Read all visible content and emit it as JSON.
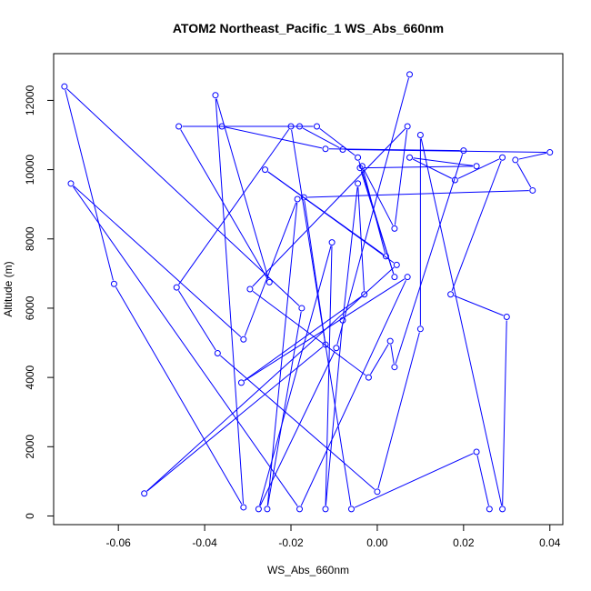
{
  "chart_data": {
    "type": "line",
    "title": "ATOM2 Northeast_Pacific_1 WS_Abs_660nm",
    "xlabel": "WS_Abs_660nm",
    "ylabel": "Altitude (m)",
    "xlim": [
      -0.075,
      0.043
    ],
    "ylim": [
      -250,
      13350
    ],
    "xticks": [
      -0.06,
      -0.04,
      -0.02,
      0.0,
      0.02,
      0.04
    ],
    "xtick_labels": [
      "-0.06",
      "-0.04",
      "-0.02",
      "0.00",
      "0.02",
      "0.04"
    ],
    "yticks": [
      0,
      2000,
      4000,
      6000,
      8000,
      10000,
      12000
    ],
    "ytick_labels": [
      "0",
      "2000",
      "4000",
      "6000",
      "8000",
      "10000",
      "12000"
    ],
    "series": [
      {
        "color": "#0000ff",
        "marker": "open-circle",
        "points": [
          {
            "x": 0.0075,
            "y": 12750
          },
          {
            "x": -0.0095,
            "y": 4850
          },
          {
            "x": -0.0275,
            "y": 200
          },
          {
            "x": -0.0105,
            "y": 7900
          },
          {
            "x": -0.012,
            "y": 200
          },
          {
            "x": -0.008,
            "y": 5650
          },
          {
            "x": -0.0045,
            "y": 9600
          },
          {
            "x": -0.003,
            "y": 6400
          },
          {
            "x": -0.0315,
            "y": 3850
          },
          {
            "x": 0.007,
            "y": 6900
          },
          {
            "x": -0.018,
            "y": 200
          },
          {
            "x": -0.071,
            "y": 9600
          },
          {
            "x": -0.031,
            "y": 5100
          },
          {
            "x": -0.0185,
            "y": 9150
          },
          {
            "x": -0.0255,
            "y": 200
          },
          {
            "x": -0.0175,
            "y": 6000
          },
          {
            "x": -0.0725,
            "y": 12400
          },
          {
            "x": -0.061,
            "y": 6700
          },
          {
            "x": -0.031,
            "y": 250
          },
          {
            "x": -0.0375,
            "y": 12150
          },
          {
            "x": -0.025,
            "y": 6750
          },
          {
            "x": -0.046,
            "y": 11250
          },
          {
            "x": -0.018,
            "y": 11250
          },
          {
            "x": -0.008,
            "y": 10580
          },
          {
            "x": 0.04,
            "y": 10500
          },
          {
            "x": 0.032,
            "y": 10280
          },
          {
            "x": 0.036,
            "y": 9400
          },
          {
            "x": -0.017,
            "y": 9200
          },
          {
            "x": -0.012,
            "y": 4950
          },
          {
            "x": -0.054,
            "y": 650
          },
          {
            "x": 0.0045,
            "y": 7250
          },
          {
            "x": -0.026,
            "y": 10000
          },
          {
            "x": 0.002,
            "y": 7500
          },
          {
            "x": -0.0035,
            "y": 10100
          },
          {
            "x": 0.004,
            "y": 8300
          },
          {
            "x": 0.007,
            "y": 11250
          },
          {
            "x": -0.0295,
            "y": 6550
          },
          {
            "x": -0.002,
            "y": 4000
          },
          {
            "x": 0.003,
            "y": 5050
          },
          {
            "x": 0.004,
            "y": 4300
          },
          {
            "x": 0.02,
            "y": 10550
          },
          {
            "x": -0.012,
            "y": 10600
          },
          {
            "x": -0.036,
            "y": 11250
          },
          {
            "x": -0.014,
            "y": 11250
          },
          {
            "x": -0.0045,
            "y": 10350
          },
          {
            "x": 0.004,
            "y": 6900
          },
          {
            "x": -0.004,
            "y": 10050
          },
          {
            "x": 0.023,
            "y": 10100
          },
          {
            "x": 0.0075,
            "y": 10350
          },
          {
            "x": 0.018,
            "y": 9700
          },
          {
            "x": 0.029,
            "y": 10350
          },
          {
            "x": 0.017,
            "y": 6400
          },
          {
            "x": 0.03,
            "y": 5750
          },
          {
            "x": 0.029,
            "y": 200
          },
          {
            "x": 0.01,
            "y": 11000
          },
          {
            "x": 0.01,
            "y": 5400
          },
          {
            "x": 0.0,
            "y": 700
          },
          {
            "x": -0.037,
            "y": 4700
          },
          {
            "x": -0.0465,
            "y": 6600
          },
          {
            "x": -0.02,
            "y": 11250
          },
          {
            "x": -0.006,
            "y": 200
          },
          {
            "x": 0.023,
            "y": 1850
          },
          {
            "x": 0.026,
            "y": 200
          }
        ]
      }
    ]
  }
}
